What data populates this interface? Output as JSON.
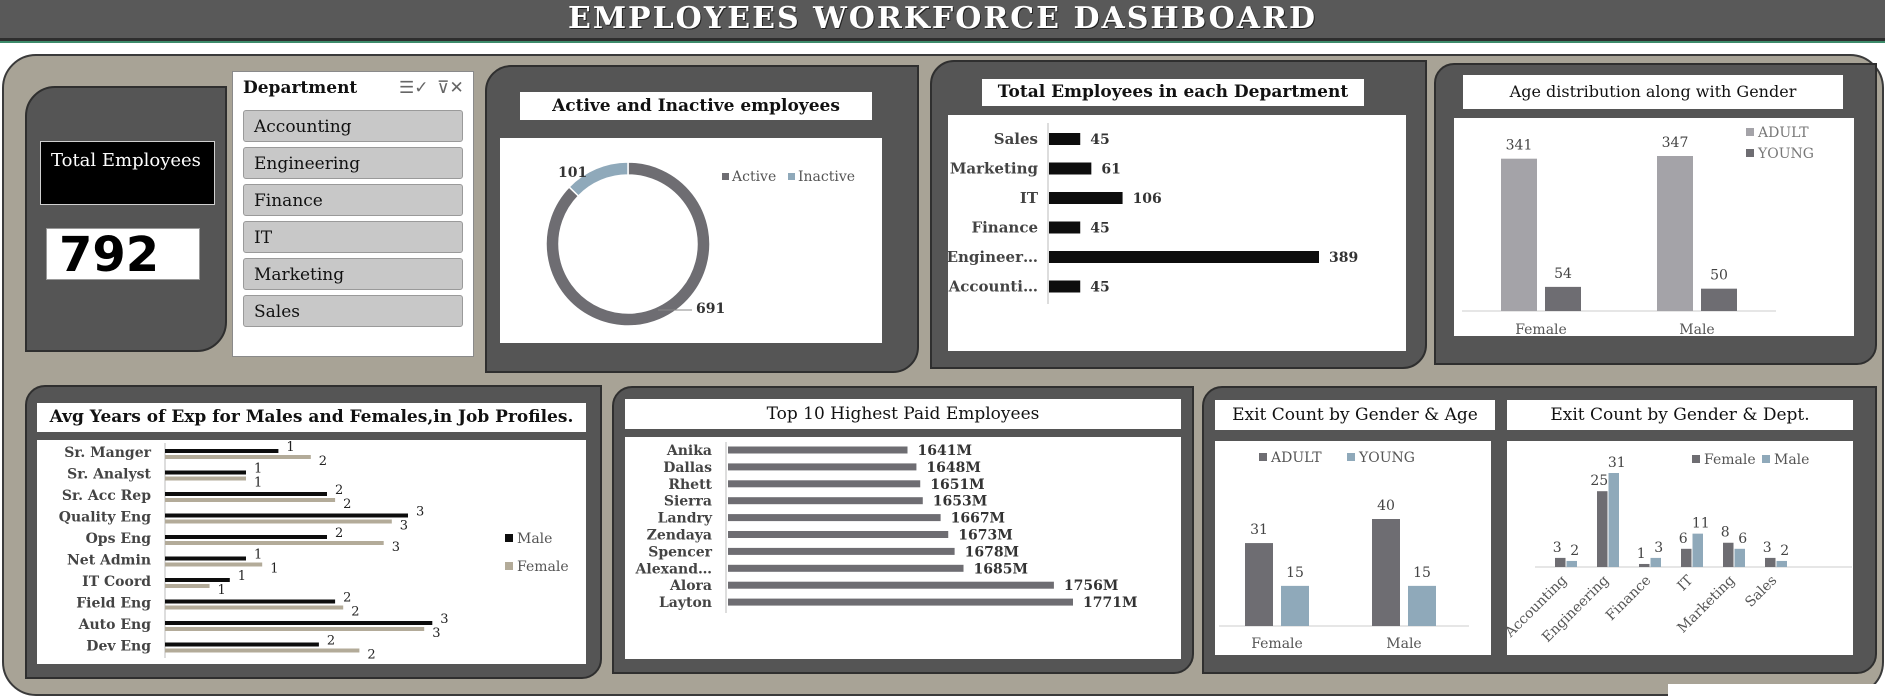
{
  "header": {
    "title": "EMPLOYEES   WORKFORCE   DASHBOARD"
  },
  "kpi": {
    "label": "Total Employees",
    "value": "792"
  },
  "slicer": {
    "title": "Department",
    "items": [
      "Accounting",
      "Engineering",
      "Finance",
      "IT",
      "Marketing",
      "Sales"
    ]
  },
  "colors": {
    "dark_card": "#555555",
    "background": "#a8a396",
    "grey": "#6e6d72",
    "light_grey": "#a4a3a8",
    "blue_grey": "#8fa9ba",
    "black": "#0d0d0d",
    "beige": "#b3ab99"
  },
  "chart_data": [
    {
      "id": "active-inactive",
      "type": "pie",
      "title": "Active and Inactive employees",
      "labels": [
        "Active",
        "Inactive"
      ],
      "values": [
        691,
        101
      ],
      "legend": "right"
    },
    {
      "id": "dept-totals",
      "type": "bar",
      "orientation": "horizontal",
      "title": "Total Employees in each Department",
      "categories": [
        "Sales",
        "Marketing",
        "IT",
        "Finance",
        "Engineer…",
        "Accounti…"
      ],
      "values": [
        45,
        61,
        106,
        45,
        389,
        45
      ]
    },
    {
      "id": "age-gender",
      "type": "bar",
      "title": "Age distribution along with Gender",
      "categories": [
        "Female",
        "Male"
      ],
      "series": [
        {
          "name": "ADULT",
          "values": [
            341,
            347
          ]
        },
        {
          "name": "YOUNG",
          "values": [
            54,
            50
          ]
        }
      ],
      "legend": "top-right"
    },
    {
      "id": "avg-exp",
      "type": "bar",
      "orientation": "horizontal",
      "title": "Avg Years of Exp for Males and Females,in Job Profiles.",
      "categories": [
        "Sr. Manger",
        "Sr. Analyst",
        "Sr. Acc Rep",
        "Quality Eng",
        "Ops Eng",
        "Net Admin",
        "IT Coord",
        "Field Eng",
        "Auto Eng",
        "Dev Eng"
      ],
      "series": [
        {
          "name": "Male",
          "values": [
            1.4,
            1.0,
            2.0,
            3.0,
            2.0,
            1.0,
            0.8,
            2.1,
            3.3,
            1.9
          ]
        },
        {
          "name": "Female",
          "values": [
            1.8,
            1.0,
            2.1,
            2.8,
            2.7,
            1.2,
            0.55,
            2.2,
            3.2,
            2.4
          ]
        }
      ],
      "data_labels": {
        "Male": [
          "1",
          "1",
          "2",
          "3",
          "2",
          "1",
          "1",
          "2",
          "3",
          "2"
        ],
        "Female": [
          "2",
          "1",
          "2",
          "3",
          "3",
          "1",
          "1",
          "2",
          "3",
          "2"
        ]
      },
      "legend": "right"
    },
    {
      "id": "top-paid",
      "type": "bar",
      "orientation": "horizontal",
      "title": "Top 10 Highest Paid Employees",
      "categories": [
        "Anika",
        "Dallas",
        "Rhett",
        "Sierra",
        "Landry",
        "Zendaya",
        "Spencer",
        "Alexand…",
        "Alora",
        "Layton"
      ],
      "values": [
        1641,
        1648,
        1651,
        1653,
        1667,
        1673,
        1678,
        1685,
        1756,
        1771
      ],
      "labels": [
        "1641M",
        "1648M",
        "1651M",
        "1653M",
        "1667M",
        "1673M",
        "1678M",
        "1685M",
        "1756M",
        "1771M"
      ]
    },
    {
      "id": "exit-gender-age",
      "type": "bar",
      "title": "Exit Count by  Gender & Age",
      "categories": [
        "Female",
        "Male"
      ],
      "series": [
        {
          "name": "ADULT",
          "values": [
            31,
            40
          ]
        },
        {
          "name": "YOUNG",
          "values": [
            15,
            15
          ]
        }
      ],
      "legend": "top"
    },
    {
      "id": "exit-gender-dept",
      "type": "bar",
      "title": "Exit Count by  Gender & Dept.",
      "categories": [
        "Accounting",
        "Engineering",
        "Finance",
        "IT",
        "Marketing",
        "Sales"
      ],
      "series": [
        {
          "name": "Female",
          "values": [
            3,
            25,
            1,
            6,
            8,
            3
          ]
        },
        {
          "name": "Male",
          "values": [
            2,
            31,
            3,
            11,
            6,
            2
          ]
        }
      ],
      "legend": "top-right"
    }
  ]
}
